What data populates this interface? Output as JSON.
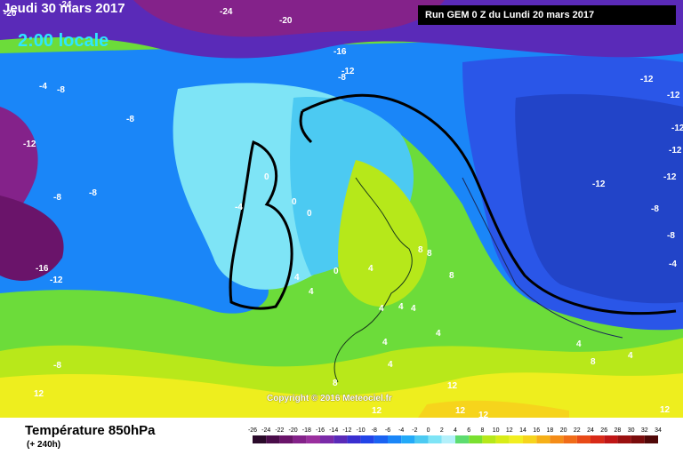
{
  "header": {
    "date_line": "Jeudi 30 mars 2017",
    "time_line": "2:00 locale",
    "run_info": "Run GEM 0 Z du Lundi 20 mars 2017"
  },
  "footer": {
    "field_title": "Température 850hPa",
    "forecast_offset": "(+ 240h)",
    "copyright": "Copyright © 2016 Meteociel.fr"
  },
  "scale": {
    "ticks": [
      "-26",
      "-24",
      "-22",
      "-20",
      "-18",
      "-16",
      "-14",
      "-12",
      "-10",
      "-8",
      "-6",
      "-4",
      "-2",
      "0",
      "2",
      "4",
      "6",
      "8",
      "10",
      "12",
      "14",
      "16",
      "18",
      "20",
      "22",
      "24",
      "26",
      "28",
      "30",
      "32",
      "34"
    ],
    "colors": [
      "#2a0a2a",
      "#4a0d4a",
      "#6a146a",
      "#84228a",
      "#9a2f9e",
      "#7a2aa8",
      "#5a2ab8",
      "#3a2fd0",
      "#2244e8",
      "#1a62f2",
      "#1a86f8",
      "#23aaf8",
      "#4ccaf2",
      "#7ee4f6",
      "#b4f0fa",
      "#5ddc70",
      "#7ae030",
      "#b6e81a",
      "#d8ec18",
      "#f2ee20",
      "#f6d41c",
      "#f6b018",
      "#f48c18",
      "#f06c18",
      "#e84a18",
      "#d82a18",
      "#c01616",
      "#9a1010",
      "#7a0c0c",
      "#500808"
    ]
  },
  "contour_labels": [
    {
      "text": "-20"
    },
    {
      "text": "-24"
    },
    {
      "text": "-24"
    },
    {
      "text": "-20"
    },
    {
      "text": "-16"
    },
    {
      "text": "-12"
    },
    {
      "text": "-8"
    },
    {
      "text": "-4"
    },
    {
      "text": "-8"
    },
    {
      "text": "-8"
    },
    {
      "text": "-12"
    },
    {
      "text": "-8"
    },
    {
      "text": "-8"
    },
    {
      "text": "-4"
    },
    {
      "text": "-16"
    },
    {
      "text": "-12"
    },
    {
      "text": "-8"
    },
    {
      "text": "0"
    },
    {
      "text": "0"
    },
    {
      "text": "0"
    },
    {
      "text": "0"
    },
    {
      "text": "4"
    },
    {
      "text": "4"
    },
    {
      "text": "4"
    },
    {
      "text": "4"
    },
    {
      "text": "8"
    },
    {
      "text": "8"
    },
    {
      "text": "8"
    },
    {
      "text": "4"
    },
    {
      "text": "4"
    },
    {
      "text": "4"
    },
    {
      "text": "4"
    },
    {
      "text": "4"
    },
    {
      "text": "8"
    },
    {
      "text": "12"
    },
    {
      "text": "12"
    },
    {
      "text": "12"
    },
    {
      "text": "12"
    },
    {
      "text": "12"
    },
    {
      "text": "-12"
    },
    {
      "text": "-12"
    },
    {
      "text": "-12"
    },
    {
      "text": "-12"
    },
    {
      "text": "-12"
    },
    {
      "text": "-12"
    },
    {
      "text": "-8"
    },
    {
      "text": "-8"
    },
    {
      "text": "-4"
    },
    {
      "text": "4"
    },
    {
      "text": "4"
    },
    {
      "text": "8"
    },
    {
      "text": "12"
    }
  ]
}
